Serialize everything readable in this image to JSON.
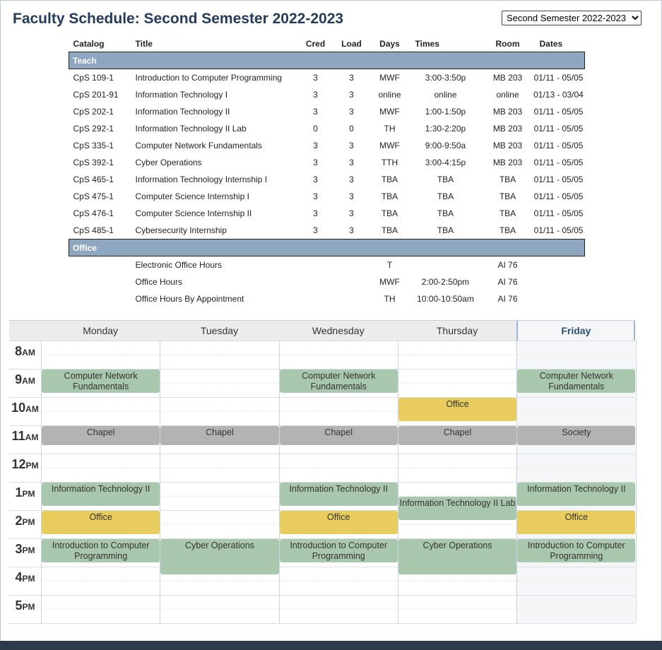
{
  "page": {
    "title": "Faculty Schedule: Second Semester 2022-2023"
  },
  "semester_select": {
    "selected": "Second Semester 2022-2023"
  },
  "table": {
    "headers": {
      "catalog": "Catalog",
      "title": "Title",
      "cred": "Cred",
      "load": "Load",
      "days": "Days",
      "times": "Times",
      "room": "Room",
      "dates": "Dates"
    },
    "teach_label": "Teach",
    "teach": [
      {
        "catalog": "CpS 109-1",
        "title": "Introduction to Computer Programming",
        "cred": "3",
        "load": "3",
        "days": "MWF",
        "times": "3:00-3:50p",
        "room": "MB 203",
        "dates": "01/11 - 05/05"
      },
      {
        "catalog": "CpS 201-91",
        "title": "Information Technology I",
        "cred": "3",
        "load": "3",
        "days": "online",
        "times": "online",
        "room": "online",
        "dates": "01/13 - 03/04"
      },
      {
        "catalog": "CpS 202-1",
        "title": "Information Technology II",
        "cred": "3",
        "load": "3",
        "days": "MWF",
        "times": "1:00-1:50p",
        "room": "MB 203",
        "dates": "01/11 - 05/05"
      },
      {
        "catalog": "CpS 292-1",
        "title": "Information Technology II Lab",
        "cred": "0",
        "load": "0",
        "days": "TH",
        "times": "1:30-2:20p",
        "room": "MB 203",
        "dates": "01/11 - 05/05"
      },
      {
        "catalog": "CpS 335-1",
        "title": "Computer Network Fundamentals",
        "cred": "3",
        "load": "3",
        "days": "MWF",
        "times": "9:00-9:50a",
        "room": "MB 203",
        "dates": "01/11 - 05/05"
      },
      {
        "catalog": "CpS 392-1",
        "title": "Cyber Operations",
        "cred": "3",
        "load": "3",
        "days": "TTH",
        "times": "3:00-4:15p",
        "room": "MB 203",
        "dates": "01/11 - 05/05"
      },
      {
        "catalog": "CpS 465-1",
        "title": "Information Technology Internship I",
        "cred": "3",
        "load": "3",
        "days": "TBA",
        "times": "TBA",
        "room": "TBA",
        "dates": "01/11 - 05/05"
      },
      {
        "catalog": "CpS 475-1",
        "title": "Computer Science Internship I",
        "cred": "3",
        "load": "3",
        "days": "TBA",
        "times": "TBA",
        "room": "TBA",
        "dates": "01/11 - 05/05"
      },
      {
        "catalog": "CpS 476-1",
        "title": "Computer Science Internship II",
        "cred": "3",
        "load": "3",
        "days": "TBA",
        "times": "TBA",
        "room": "TBA",
        "dates": "01/11 - 05/05"
      },
      {
        "catalog": "CpS 485-1",
        "title": "Cybersecurity Internship",
        "cred": "3",
        "load": "3",
        "days": "TBA",
        "times": "TBA",
        "room": "TBA",
        "dates": "01/11 - 05/05"
      }
    ],
    "office_label": "Office",
    "office": [
      {
        "title": "Electronic Office Hours",
        "days": "T",
        "times": "",
        "room": "AI 76"
      },
      {
        "title": "Office Hours",
        "days": "MWF",
        "times": "2:00-2:50pm",
        "room": "AI 76"
      },
      {
        "title": "Office Hours By Appointment",
        "days": "TH",
        "times": "10:00-10:50am",
        "room": "AI 76"
      }
    ]
  },
  "calendar": {
    "days": [
      "Monday",
      "Tuesday",
      "Wednesday",
      "Thursday",
      "Friday"
    ],
    "today": "Friday",
    "hours": [
      {
        "num": "8",
        "ampm": "AM"
      },
      {
        "num": "9",
        "ampm": "AM"
      },
      {
        "num": "10",
        "ampm": "AM"
      },
      {
        "num": "11",
        "ampm": "AM"
      },
      {
        "num": "12",
        "ampm": "PM"
      },
      {
        "num": "1",
        "ampm": "PM"
      },
      {
        "num": "2",
        "ampm": "PM"
      },
      {
        "num": "3",
        "ampm": "PM"
      },
      {
        "num": "4",
        "ampm": "PM"
      },
      {
        "num": "5",
        "ampm": "PM"
      }
    ],
    "start_hour": 8,
    "events": [
      {
        "day": 0,
        "start": 9,
        "end": 9.833,
        "label": "Computer Network Fundamentals",
        "kind": "class"
      },
      {
        "day": 2,
        "start": 9,
        "end": 9.833,
        "label": "Computer Network Fundamentals",
        "kind": "class"
      },
      {
        "day": 4,
        "start": 9,
        "end": 9.833,
        "label": "Computer Network Fundamentals",
        "kind": "class"
      },
      {
        "day": 3,
        "start": 10,
        "end": 10.833,
        "label": "Office",
        "kind": "office"
      },
      {
        "day": 0,
        "start": 11,
        "end": 11.667,
        "label": "Chapel",
        "kind": "chapel"
      },
      {
        "day": 1,
        "start": 11,
        "end": 11.667,
        "label": "Chapel",
        "kind": "chapel"
      },
      {
        "day": 2,
        "start": 11,
        "end": 11.667,
        "label": "Chapel",
        "kind": "chapel"
      },
      {
        "day": 3,
        "start": 11,
        "end": 11.667,
        "label": "Chapel",
        "kind": "chapel"
      },
      {
        "day": 4,
        "start": 11,
        "end": 11.667,
        "label": "Society",
        "kind": "chapel"
      },
      {
        "day": 0,
        "start": 13,
        "end": 13.833,
        "label": "Information Technology II",
        "kind": "class"
      },
      {
        "day": 2,
        "start": 13,
        "end": 13.833,
        "label": "Information Technology II",
        "kind": "class"
      },
      {
        "day": 4,
        "start": 13,
        "end": 13.833,
        "label": "Information Technology II",
        "kind": "class"
      },
      {
        "day": 3,
        "start": 13.5,
        "end": 14.333,
        "label": "Information Technology II Lab",
        "kind": "class"
      },
      {
        "day": 0,
        "start": 14,
        "end": 14.833,
        "label": "Office",
        "kind": "office"
      },
      {
        "day": 2,
        "start": 14,
        "end": 14.833,
        "label": "Office",
        "kind": "office"
      },
      {
        "day": 4,
        "start": 14,
        "end": 14.833,
        "label": "Office",
        "kind": "office"
      },
      {
        "day": 0,
        "start": 15,
        "end": 15.833,
        "label": "Introduction to Computer Programming",
        "kind": "class"
      },
      {
        "day": 2,
        "start": 15,
        "end": 15.833,
        "label": "Introduction to Computer Programming",
        "kind": "class"
      },
      {
        "day": 4,
        "start": 15,
        "end": 15.833,
        "label": "Introduction to Computer Programming",
        "kind": "class"
      },
      {
        "day": 1,
        "start": 15,
        "end": 16.25,
        "label": "Cyber Operations",
        "kind": "class"
      },
      {
        "day": 3,
        "start": 15,
        "end": 16.25,
        "label": "Cyber Operations",
        "kind": "class"
      }
    ]
  },
  "colors": {
    "title": "#243b5e",
    "section": "#8ea6bf",
    "class": "#a9c7ad",
    "office": "#e8cd5e",
    "chapel": "#b3b3b3"
  }
}
